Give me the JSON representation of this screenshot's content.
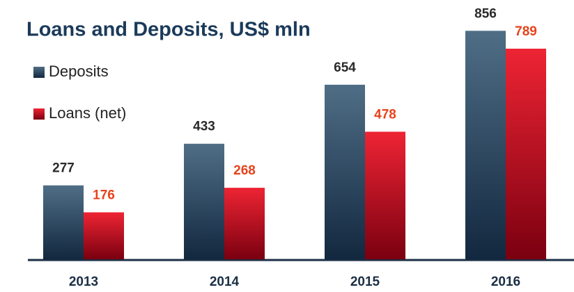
{
  "chart_data": {
    "type": "bar",
    "title": "Loans and Deposits, US$ mln",
    "categories": [
      "2013",
      "2014",
      "2015",
      "2016"
    ],
    "series": [
      {
        "name": "Deposits",
        "color": "#4f6e86",
        "values": [
          277,
          433,
          654,
          856
        ]
      },
      {
        "name": "Loans (net)",
        "color": "#ee2434",
        "values": [
          176,
          268,
          478,
          789
        ]
      }
    ]
  }
}
